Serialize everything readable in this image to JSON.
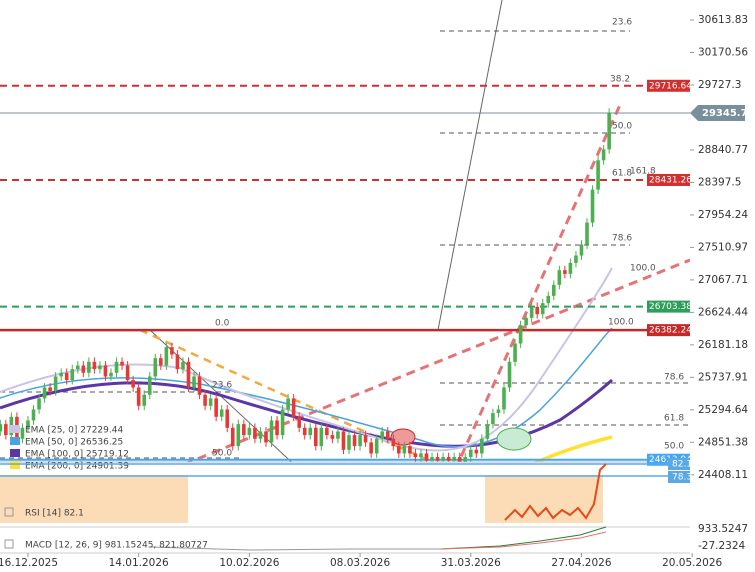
{
  "chart_data": {
    "type": "candlestick",
    "categories": [
      null,
      null,
      null,
      null,
      null,
      "16.12.2025",
      null,
      null,
      null,
      null,
      null,
      null,
      null,
      null,
      null,
      null,
      null,
      null,
      null,
      null,
      null,
      null,
      null,
      null,
      null,
      "14.01.2026",
      null,
      null,
      null,
      null,
      null,
      null,
      null,
      null,
      null,
      null,
      null,
      null,
      null,
      null,
      null,
      null,
      null,
      null,
      null,
      "10.02.2026",
      null,
      null,
      null,
      null,
      null,
      null,
      null,
      null,
      null,
      null,
      null,
      null,
      null,
      null,
      null,
      null,
      null,
      null,
      null,
      "08.03.2026",
      null,
      null,
      null,
      null,
      null,
      null,
      null,
      null,
      null,
      null,
      null,
      null,
      null,
      null,
      null,
      null,
      null,
      null,
      null,
      "31.03.2026",
      null,
      null,
      null,
      null,
      null,
      null,
      null,
      null,
      null,
      null,
      null,
      null,
      null,
      null,
      null,
      null,
      null,
      null,
      null,
      "27.04.2026",
      null,
      null,
      null,
      null,
      null,
      null,
      null,
      null,
      null,
      null,
      null,
      null,
      null,
      null,
      null,
      null,
      null,
      null,
      null,
      "20.05.2026"
    ],
    "open": [
      25000,
      25100,
      24950,
      25200,
      24900,
      25050,
      25150,
      25300,
      25450,
      25600,
      25550,
      25750,
      25800,
      25700,
      25850,
      25900,
      25800,
      25950,
      25850,
      25900,
      25750,
      25800,
      25950,
      25900,
      25700,
      25600,
      25350,
      25500,
      25750,
      26000,
      25900,
      26150,
      26050,
      25850,
      25950,
      25600,
      25750,
      25500,
      25350,
      25450,
      25200,
      25300,
      25050,
      24800,
      25100,
      24950,
      25050,
      24900,
      25000,
      24850,
      25150,
      24950,
      25300,
      25450,
      25200,
      25050,
      24950,
      25050,
      24800,
      25050,
      24950,
      24900,
      25000,
      24750,
      24950,
      24800,
      24950,
      24850,
      24700,
      24900,
      25000,
      24900,
      24800,
      24700,
      24800,
      24700,
      24650,
      24700,
      24600,
      24650,
      24600,
      24650,
      24600,
      24650,
      24580,
      24650,
      24750,
      24700,
      24900,
      25100,
      25250,
      25300,
      25600,
      25950,
      26200,
      26450,
      26550,
      26700,
      26600,
      26750,
      26850,
      27000,
      27200,
      27150,
      27300,
      27400,
      27550,
      27850,
      28300,
      28700,
      28850,
      null,
      null,
      null,
      null,
      null,
      null,
      null,
      null,
      null,
      null,
      null,
      null,
      null,
      null,
      null
    ],
    "high": [
      25160,
      25160,
      25260,
      25260,
      25110,
      25210,
      25360,
      25510,
      25660,
      25660,
      25810,
      25860,
      25860,
      25910,
      25960,
      25960,
      26010,
      26010,
      25960,
      25960,
      25860,
      26010,
      26010,
      25960,
      25760,
      25660,
      25560,
      25810,
      26060,
      26060,
      26210,
      26210,
      26110,
      26010,
      26010,
      25810,
      25810,
      25560,
      25510,
      25510,
      25360,
      25360,
      25110,
      25160,
      25160,
      25110,
      25110,
      25060,
      25060,
      25210,
      25210,
      25360,
      25510,
      25510,
      25260,
      25110,
      25110,
      25110,
      25110,
      25110,
      25010,
      25060,
      25060,
      25010,
      25010,
      25010,
      25010,
      24910,
      24960,
      25060,
      25060,
      24960,
      24860,
      24860,
      24860,
      24760,
      24760,
      24760,
      24710,
      24710,
      24710,
      24710,
      24710,
      24710,
      24710,
      24810,
      24810,
      24960,
      25160,
      25310,
      25360,
      25660,
      26010,
      26260,
      26510,
      26610,
      26760,
      26760,
      26810,
      26910,
      27060,
      27260,
      27260,
      27360,
      27460,
      27610,
      27910,
      28360,
      28760,
      28910,
      29410,
      null,
      null,
      null,
      null,
      null,
      null,
      null,
      null,
      null,
      null,
      null,
      null,
      null,
      null,
      null
    ],
    "low": [
      24940,
      24890,
      24890,
      24840,
      24840,
      24990,
      25090,
      25240,
      25390,
      25490,
      25490,
      25690,
      25640,
      25640,
      25790,
      25740,
      25740,
      25790,
      25790,
      25690,
      25690,
      25740,
      25840,
      25640,
      25540,
      25290,
      25290,
      25440,
      25690,
      25840,
      25840,
      25990,
      25790,
      25790,
      25540,
      25540,
      25440,
      25290,
      25290,
      25140,
      25140,
      24990,
      24740,
      24740,
      24890,
      24890,
      24840,
      24840,
      24790,
      24790,
      24890,
      24890,
      25240,
      25140,
      24990,
      24890,
      24890,
      24740,
      24740,
      24890,
      24840,
      24840,
      24690,
      24690,
      24740,
      24740,
      24790,
      24640,
      24640,
      24840,
      24840,
      24740,
      24640,
      24640,
      24640,
      24590,
      24590,
      24540,
      24540,
      24540,
      24540,
      24540,
      24540,
      24520,
      24520,
      24590,
      24640,
      24640,
      24840,
      25040,
      25190,
      25240,
      25540,
      25890,
      26140,
      26390,
      26490,
      26540,
      26540,
      26690,
      26790,
      26940,
      27090,
      27090,
      27240,
      27340,
      27490,
      27790,
      28240,
      28640,
      28790,
      null,
      null,
      null,
      null,
      null,
      null,
      null,
      null,
      null,
      null,
      null,
      null,
      null,
      null,
      null
    ],
    "close": [
      25100,
      24950,
      25200,
      24900,
      25050,
      25150,
      25300,
      25450,
      25600,
      25550,
      25750,
      25800,
      25700,
      25850,
      25900,
      25800,
      25950,
      25850,
      25900,
      25750,
      25800,
      25950,
      25900,
      25700,
      25600,
      25350,
      25500,
      25750,
      26000,
      25900,
      26150,
      26050,
      25850,
      25950,
      25600,
      25750,
      25500,
      25350,
      25450,
      25200,
      25300,
      25050,
      24800,
      25100,
      24950,
      25050,
      24900,
      25000,
      24850,
      25150,
      24950,
      25300,
      25450,
      25200,
      25050,
      24950,
      25050,
      24800,
      25050,
      24950,
      24900,
      25000,
      24750,
      24950,
      24800,
      24950,
      24850,
      24700,
      24900,
      25000,
      24900,
      24800,
      24700,
      24800,
      24700,
      24650,
      24700,
      24600,
      24650,
      24600,
      24650,
      24600,
      24650,
      24580,
      24650,
      24750,
      24700,
      24900,
      25100,
      25250,
      25300,
      25600,
      25950,
      26200,
      26450,
      26550,
      26700,
      26600,
      26750,
      26850,
      27000,
      27200,
      27150,
      27300,
      27400,
      27550,
      27850,
      28300,
      28700,
      28850,
      29350,
      null,
      null,
      null,
      null,
      null,
      null,
      null,
      null,
      null,
      null,
      null,
      null,
      null,
      null,
      null
    ],
    "up_color": "#4caf50",
    "down_color": "#e53935",
    "ylim": [
      24583,
      30887
    ],
    "yticks": [
      30613.83,
      30170.56,
      29727.3,
      28840.77,
      28397.5,
      27954.24,
      27510.97,
      27067.71,
      26624.44,
      26181.18,
      25737.91,
      25294.64,
      24851.38,
      24408.11
    ],
    "price_tags": [
      {
        "value": 29716.64,
        "color": "#d32f2f"
      },
      {
        "value": 29345.7,
        "color": "#78909c"
      },
      {
        "value": 28431.26,
        "color": "#d32f2f"
      },
      {
        "value": 26703.38,
        "color": "#2e9e5b"
      },
      {
        "value": 26382.24,
        "color": "#c62828"
      },
      {
        "value": 24613.94,
        "color": "#42a5f5"
      }
    ],
    "fib_labels": [
      "23.6",
      "38.2",
      "50.0",
      "161.8",
      "61.8",
      "78.6",
      "100.0",
      "100.0",
      "0.0",
      "23.6",
      "50.0",
      "78.6",
      "61.8",
      "50.0"
    ],
    "ema_labels": [
      "EMA [25, 0] 27229.44",
      "EMA [50, 0] 26536.25",
      "EMA [100, 0] 25719.12",
      "EMA [200, 0] 24901.39"
    ],
    "rsi": {
      "label": "RSI [14] 82.1",
      "tags": [
        82.1,
        78.3
      ]
    },
    "macd": {
      "label": "MACD [12, 26, 9] 981.15245, 821.80727",
      "ticks": [
        933.5247,
        -27.2324
      ]
    }
  }
}
